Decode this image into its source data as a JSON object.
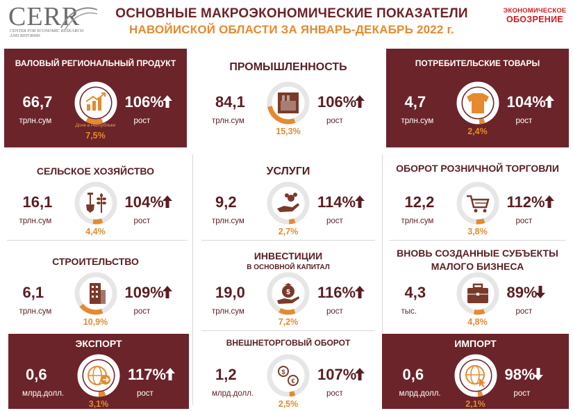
{
  "header": {
    "logo_text": "CERR",
    "logo_sub": "Center for Economic Research and Reforms",
    "title_line1": "ОСНОВНЫЕ МАКРОЭКОНОМИЧЕСКИЕ ПОКАЗАТЕЛИ",
    "title_line2": "НАВОЙИСКОЙ ОБЛАСТИ ЗА ЯНВАРЬ-ДЕКАБРЬ 2022 г.",
    "brand_line1": "ЭКОНОМИЧЕСКОЕ",
    "brand_line2": "ОБОЗРЕНИЕ"
  },
  "colors": {
    "dark": "#6b2429",
    "accent": "#e58a2e",
    "text": "#5a1e22",
    "brand": "#d01a22"
  },
  "cards": [
    {
      "id": "grp",
      "title": "ВАЛОВЫЙ РЕГИОНАЛЬНЫЙ ПРОДУКТ",
      "value": "66,7",
      "unit": "трлн.сум",
      "growth_value": "106%",
      "growth_label": "рост",
      "share": "7,5%",
      "share_fraction": 0.075,
      "note": "Доля в Республике",
      "icon": "chart-up-icon",
      "direction": "up",
      "dark": true
    },
    {
      "id": "industry",
      "title": "ПРОМЫШЛЕННОСТЬ",
      "value": "84,1",
      "unit": "трлн.сум",
      "growth_value": "106%",
      "growth_label": "рост",
      "share": "15,3%",
      "share_fraction": 0.153,
      "icon": "factory-icon",
      "direction": "up",
      "dark": false
    },
    {
      "id": "consumer",
      "title": "ПОТРЕБИТЕЛЬСКИЕ ТОВАРЫ",
      "value": "4,7",
      "unit": "трлн.сум",
      "growth_value": "104%",
      "growth_label": "рост",
      "share": "2,4%",
      "share_fraction": 0.024,
      "icon": "tshirt-icon",
      "direction": "up",
      "dark": true
    },
    {
      "id": "agri",
      "title": "СЕЛЬСКОЕ ХОЗЯЙСТВО",
      "value": "16,1",
      "unit": "трлн.сум",
      "growth_value": "104%",
      "growth_label": "рост",
      "share": "4,4%",
      "share_fraction": 0.044,
      "icon": "shovel-wheat-icon",
      "direction": "up",
      "dark": false
    },
    {
      "id": "services",
      "title": "УСЛУГИ",
      "value": "9,2",
      "unit": "трлн.сум",
      "growth_value": "114%",
      "growth_label": "рост",
      "share": "2,7%",
      "share_fraction": 0.027,
      "icon": "hand-service-icon",
      "direction": "up",
      "dark": false
    },
    {
      "id": "retail",
      "title": "ОБОРОТ РОЗНИЧНОЙ ТОРГОВЛИ",
      "value": "12,2",
      "unit": "трлн.сум",
      "growth_value": "112%",
      "growth_label": "рост",
      "share": "3,8%",
      "share_fraction": 0.038,
      "icon": "cart-icon",
      "direction": "up",
      "dark": false
    },
    {
      "id": "construction",
      "title": "СТРОИТЕЛЬСТВО",
      "value": "6,1",
      "unit": "трлн.сум",
      "growth_value": "109%",
      "growth_label": "рост",
      "share": "10,9%",
      "share_fraction": 0.109,
      "icon": "building-icon",
      "direction": "up",
      "dark": false
    },
    {
      "id": "investment",
      "title": "ИНВЕСТИЦИИ",
      "subtitle": "В ОСНОВНОЙ КАПИТАЛ",
      "value": "19,0",
      "unit": "трлн.сум",
      "growth_value": "116%",
      "growth_label": "рост",
      "share": "7,2%",
      "share_fraction": 0.072,
      "icon": "money-bag-hand-icon",
      "direction": "up",
      "dark": false
    },
    {
      "id": "smallbiz",
      "title": "ВНОВЬ СОЗДАННЫЕ СУБЪЕКТЫ",
      "subtitle": "МАЛОГО БИЗНЕСА",
      "value": "4,3",
      "unit": "тыс.",
      "growth_value": "89%",
      "growth_label": "рост",
      "share": "4,8%",
      "share_fraction": 0.048,
      "icon": "briefcase-icon",
      "direction": "down",
      "dark": false
    },
    {
      "id": "export",
      "title": "ЭКСПОРТ",
      "value": "0,6",
      "unit": "млрд.долл.",
      "growth_value": "117%",
      "growth_label": "рост",
      "share": "3,1%",
      "share_fraction": 0.031,
      "icon": "globe-arrow-icon",
      "direction": "up",
      "dark": true
    },
    {
      "id": "trade",
      "title": "ВНЕШНЕТОРГОВЫЙ ОБОРОТ",
      "value": "1,2",
      "unit": "млрд.долл.",
      "growth_value": "107%",
      "growth_label": "рост",
      "share": "2,5%",
      "share_fraction": 0.025,
      "icon": "currency-exchange-icon",
      "direction": "up",
      "dark": false
    },
    {
      "id": "import",
      "title": "ИМПОРТ",
      "value": "0,6",
      "unit": "млрд.долл.",
      "growth_value": "98%",
      "growth_label": "рост",
      "share": "2,1%",
      "share_fraction": 0.021,
      "icon": "globe-cursor-icon",
      "direction": "down",
      "dark": true
    }
  ]
}
